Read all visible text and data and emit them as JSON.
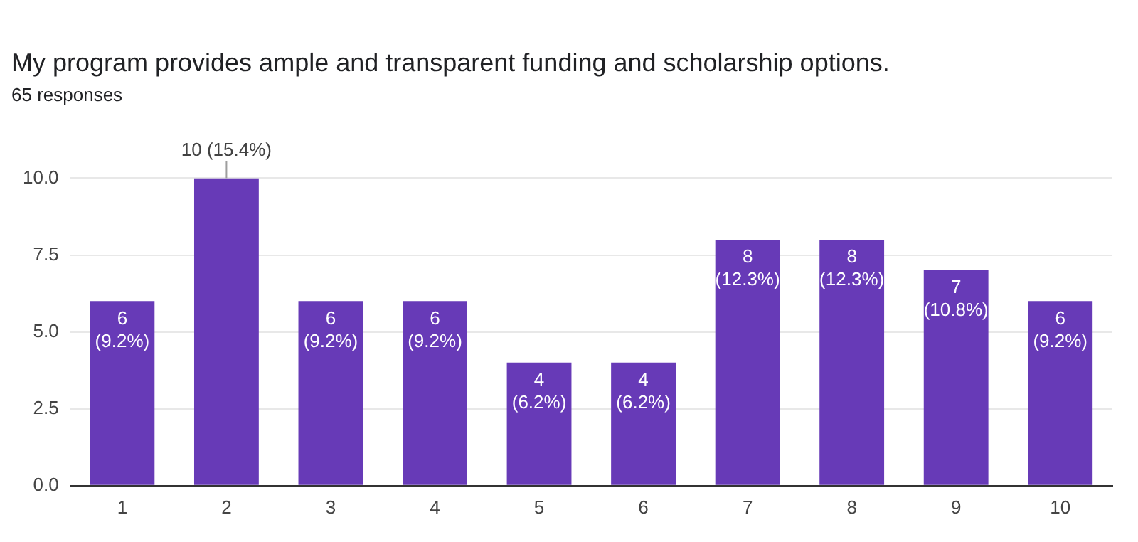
{
  "chart_data": {
    "type": "bar",
    "title": "My program provides ample and transparent funding and scholarship options.",
    "subtitle": "65 responses",
    "categories": [
      "1",
      "2",
      "3",
      "4",
      "5",
      "6",
      "7",
      "8",
      "9",
      "10"
    ],
    "values": [
      6,
      10,
      6,
      6,
      4,
      4,
      8,
      8,
      7,
      6
    ],
    "value_labels": [
      "6 (9.2%)",
      "10 (15.4%)",
      "6 (9.2%)",
      "6 (9.2%)",
      "4 (6.2%)",
      "4 (6.2%)",
      "8 (12.3%)",
      "8 (12.3%)",
      "7 (10.8%)",
      "6 (9.2%)"
    ],
    "color": "#673ab7",
    "ylim": [
      0,
      10
    ],
    "yticks": [
      {
        "value": 0,
        "label": "0.0"
      },
      {
        "value": 2.5,
        "label": "2.5"
      },
      {
        "value": 5,
        "label": "5.0"
      },
      {
        "value": 7.5,
        "label": "7.5"
      },
      {
        "value": 10,
        "label": "10.0"
      }
    ],
    "grid": "y",
    "legend": false
  }
}
